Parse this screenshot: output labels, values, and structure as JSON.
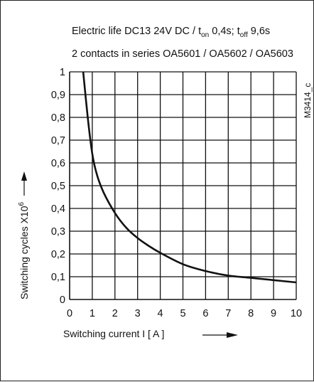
{
  "chart_data": {
    "type": "line",
    "title_line1": "Electric life  DC13 24V DC / t",
    "title_ton_sub": "on",
    "title_ton_val": " 0,4s;  t",
    "title_toff_sub": "off",
    "title_toff_val": " 9,6s",
    "title_line2": "2 contacts in series OA5601 / OA5602 / OA5603",
    "drawing_code": "M3414_c",
    "xlabel": "Switching current   I   [ A ]",
    "ylabel": "Switching cycles  X10",
    "ylabel_exp": "6",
    "x_ticks": [
      "0",
      "1",
      "2",
      "3",
      "4",
      "5",
      "6",
      "7",
      "8",
      "9",
      "10"
    ],
    "y_ticks": [
      "0",
      "0,1",
      "0,2",
      "0,3",
      "0,4",
      "0,5",
      "0,6",
      "0,7",
      "0,8",
      "0,9",
      "1"
    ],
    "xlim": [
      0,
      10
    ],
    "ylim": [
      0,
      1
    ],
    "grid": true,
    "series": [
      {
        "x": [
          0.6,
          0.8,
          1.0,
          1.2,
          1.5,
          2.0,
          2.5,
          3.0,
          3.5,
          4.0,
          5.0,
          6.0,
          7.0,
          8.0,
          9.0,
          10.0
        ],
        "y": [
          1.0,
          0.8,
          0.64,
          0.55,
          0.47,
          0.38,
          0.315,
          0.27,
          0.235,
          0.205,
          0.155,
          0.125,
          0.105,
          0.095,
          0.085,
          0.075
        ]
      }
    ]
  }
}
